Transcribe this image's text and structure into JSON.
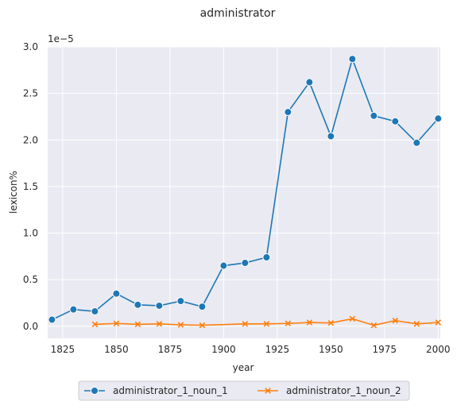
{
  "chart_data": {
    "type": "line",
    "title": "administrator",
    "xlabel": "year",
    "ylabel": "lexicon%",
    "y_offset_label": "1e−5",
    "xlim": [
      1818,
      2001
    ],
    "ylim": [
      -0.13,
      3.0
    ],
    "x_ticks": [
      1825,
      1850,
      1875,
      1900,
      1925,
      1950,
      1975,
      2000
    ],
    "y_ticks": [
      0.0,
      0.5,
      1.0,
      1.5,
      2.0,
      2.5,
      3.0
    ],
    "y_tick_labels": [
      "0.0",
      "0.5",
      "1.0",
      "1.5",
      "2.0",
      "2.5",
      "3.0"
    ],
    "grid": true,
    "legend_position": "bottom-center",
    "series": [
      {
        "name": "administrator_1_noun_1",
        "color": "#1f77b4",
        "marker": "circle",
        "x": [
          1820,
          1830,
          1840,
          1850,
          1860,
          1870,
          1880,
          1890,
          1900,
          1910,
          1920,
          1930,
          1940,
          1950,
          1960,
          1970,
          1980,
          1990,
          2000
        ],
        "y": [
          0.07,
          0.18,
          0.16,
          0.35,
          0.23,
          0.22,
          0.27,
          0.21,
          0.65,
          0.68,
          0.74,
          2.3,
          2.62,
          2.04,
          2.87,
          2.26,
          2.2,
          1.97,
          2.23
        ]
      },
      {
        "name": "administrator_1_noun_2",
        "color": "#ff7f0e",
        "marker": "x",
        "x": [
          1840,
          1850,
          1860,
          1870,
          1880,
          1890,
          1910,
          1920,
          1930,
          1940,
          1950,
          1960,
          1970,
          1980,
          1990,
          2000
        ],
        "y": [
          0.02,
          0.03,
          0.02,
          0.025,
          0.015,
          0.01,
          0.025,
          0.025,
          0.03,
          0.04,
          0.035,
          0.08,
          0.01,
          0.06,
          0.025,
          0.04
        ]
      }
    ]
  }
}
